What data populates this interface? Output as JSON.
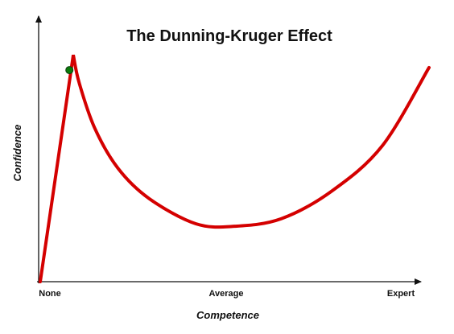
{
  "chart_data": {
    "type": "line",
    "title": "The Dunning-Kruger Effect",
    "xlabel": "Competence",
    "ylabel": "Confidence",
    "x_tick_labels": [
      "None",
      "Average",
      "Expert"
    ],
    "grid": false,
    "legend": "none",
    "xlim": [
      0,
      100
    ],
    "ylim": [
      0,
      100
    ],
    "series": [
      {
        "color": "#d40000",
        "x": [
          0,
          8.5,
          10,
          14,
          20,
          28,
          40,
          50,
          62,
          75,
          88,
          100
        ],
        "y": [
          0,
          90,
          79,
          61,
          45,
          33,
          23,
          22,
          25,
          36,
          54,
          85
        ]
      }
    ],
    "highlight_point": {
      "x": 7.5,
      "y": 84,
      "color": "#0a7a0a"
    }
  }
}
